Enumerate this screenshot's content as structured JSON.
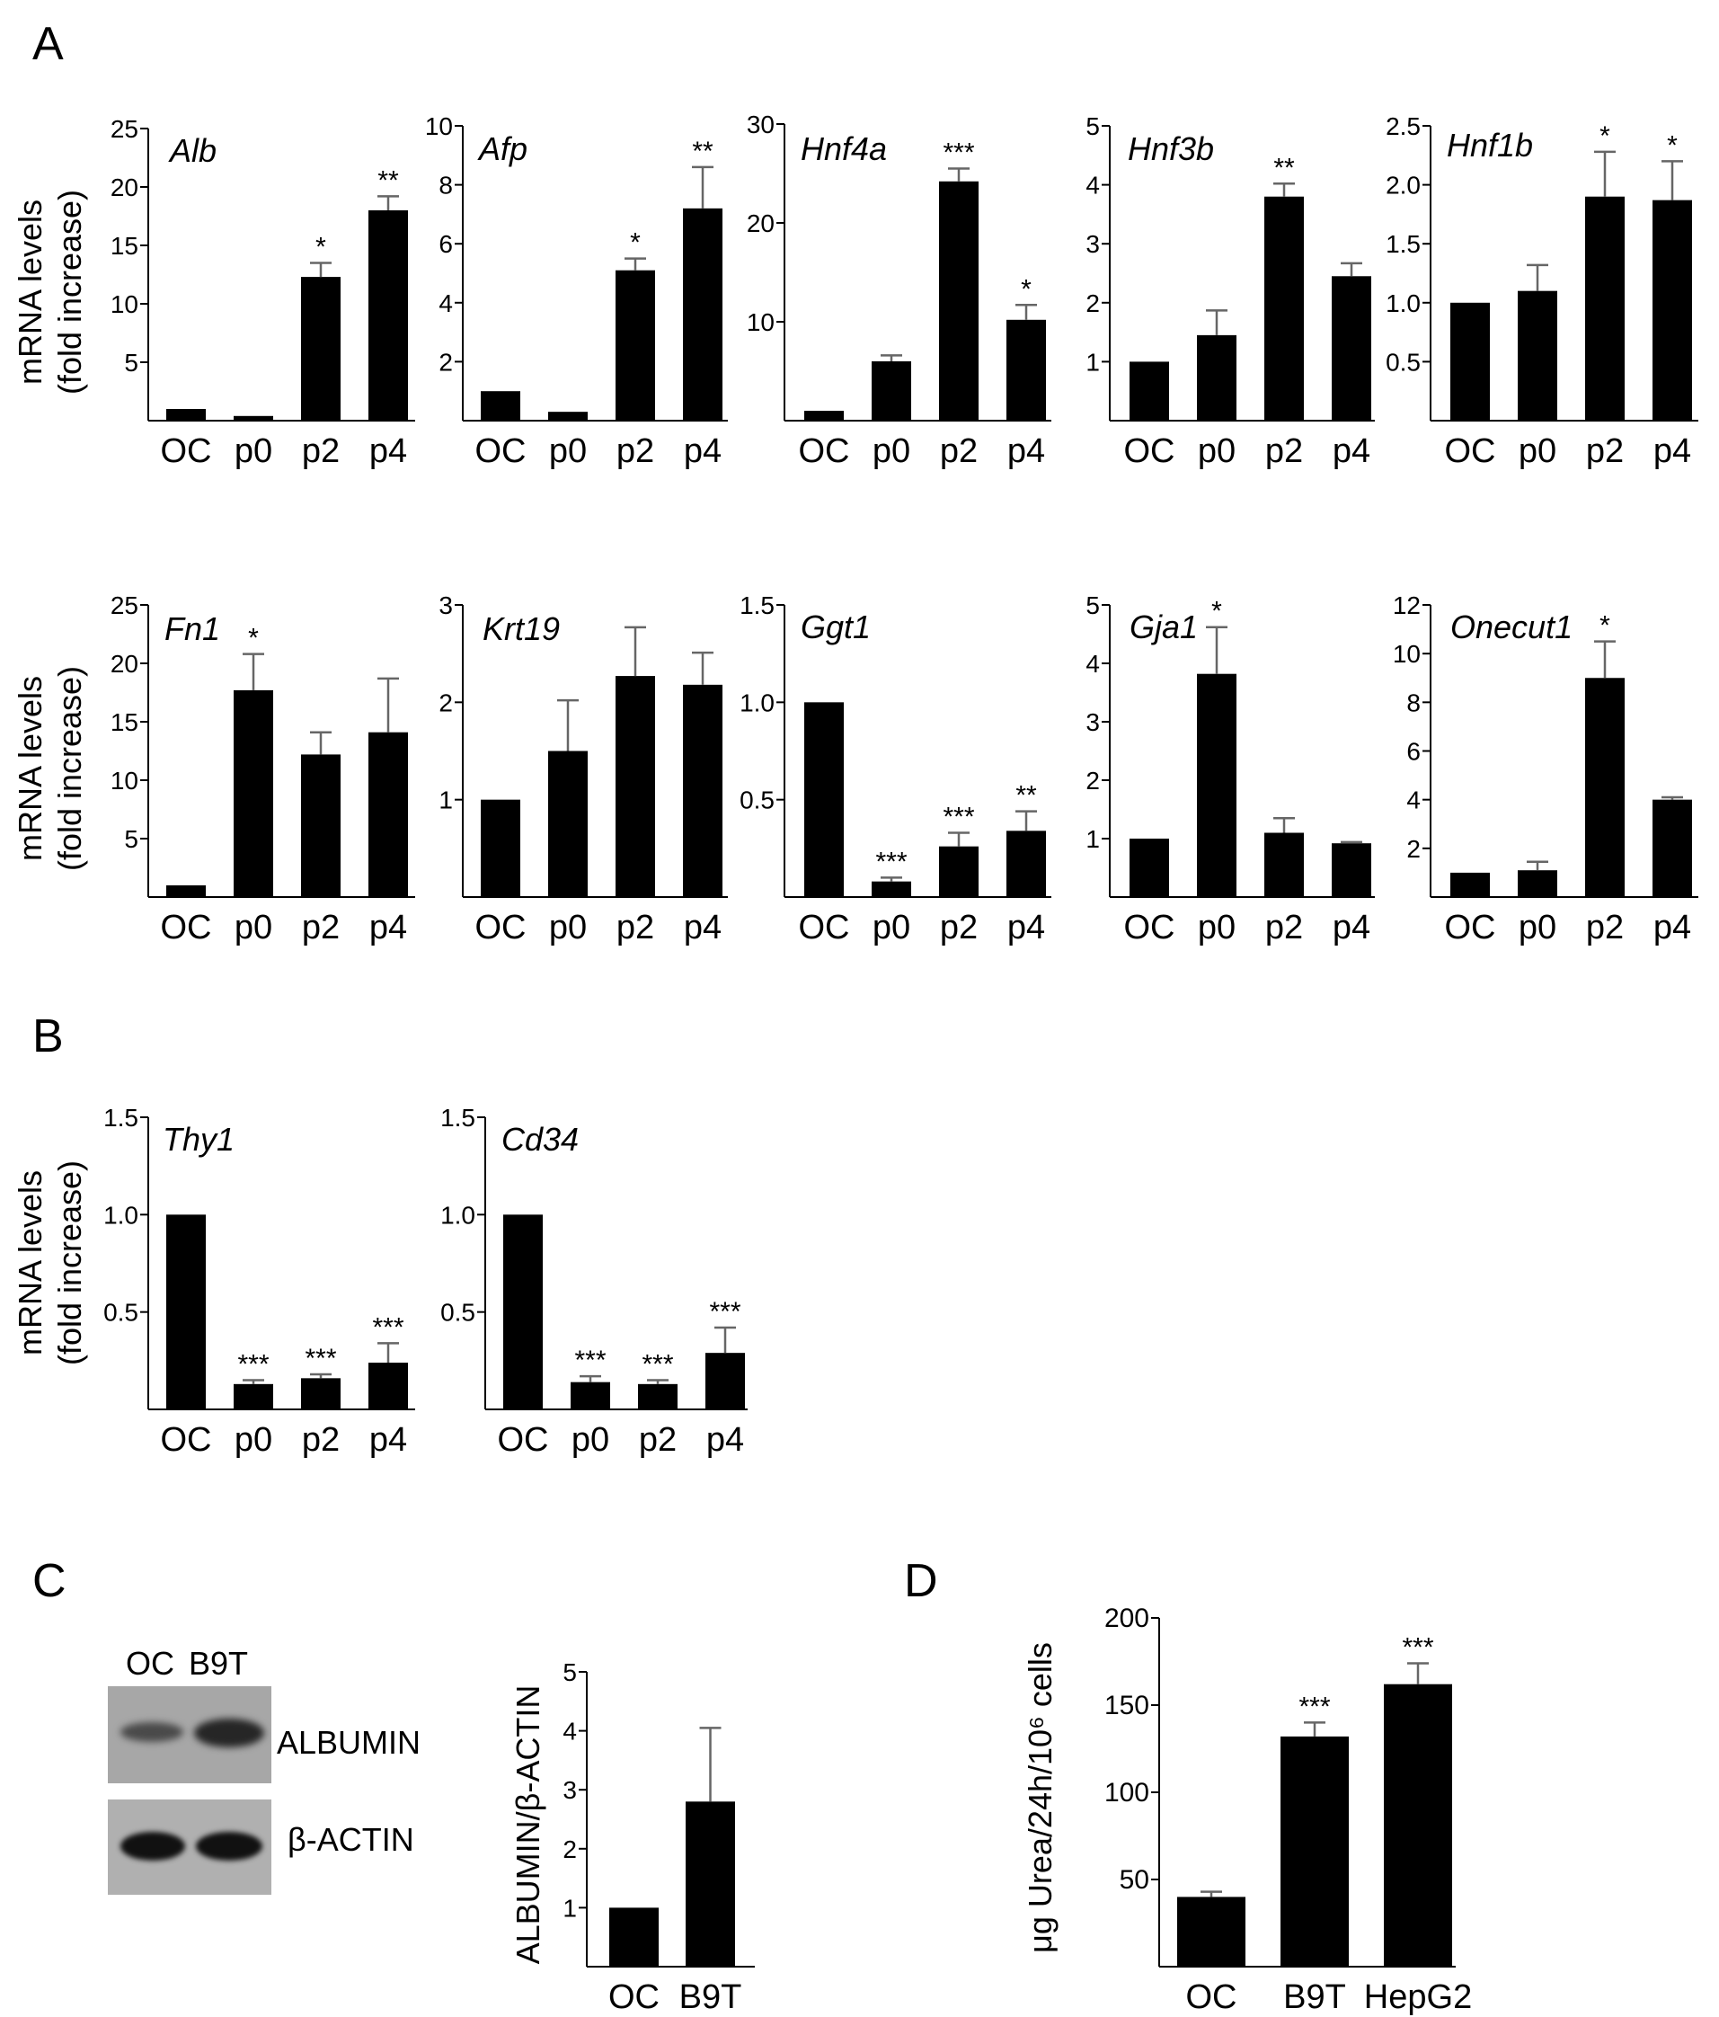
{
  "panels": {
    "A": "A",
    "B": "B",
    "C": "C",
    "D": "D"
  },
  "y_title": {
    "line1": "mRNA levels",
    "line2": "(fold increase)"
  },
  "chart_data": [
    {
      "type": "bar",
      "title": "Alb",
      "categories": [
        "OC",
        "p0",
        "p2",
        "p4"
      ],
      "values": [
        1,
        0.4,
        12.3,
        18
      ],
      "errors": [
        0,
        0,
        1.2,
        1.2
      ],
      "significance": [
        "",
        "",
        "*",
        "**"
      ],
      "ylim": [
        0,
        25
      ],
      "yticks": [
        5,
        10,
        15,
        20,
        25
      ]
    },
    {
      "type": "bar",
      "title": "Afp",
      "categories": [
        "OC",
        "p0",
        "p2",
        "p4"
      ],
      "values": [
        1,
        0.3,
        5.1,
        7.2
      ],
      "errors": [
        0,
        0,
        0.4,
        1.4
      ],
      "significance": [
        "",
        "",
        "*",
        "**"
      ],
      "ylim": [
        0,
        10
      ],
      "yticks": [
        2,
        4,
        6,
        8,
        10
      ]
    },
    {
      "type": "bar",
      "title": "Hnf4a",
      "categories": [
        "OC",
        "p0",
        "p2",
        "p4"
      ],
      "values": [
        1,
        6,
        24.2,
        10.2
      ],
      "errors": [
        0,
        0.6,
        1.3,
        1.5
      ],
      "significance": [
        "",
        "",
        "***",
        "*"
      ],
      "ylim": [
        0,
        30
      ],
      "yticks": [
        10,
        20,
        30
      ]
    },
    {
      "type": "bar",
      "title": "Hnf3b",
      "categories": [
        "OC",
        "p0",
        "p2",
        "p4"
      ],
      "values": [
        1,
        1.45,
        3.8,
        2.45
      ],
      "errors": [
        0,
        0.42,
        0.22,
        0.22
      ],
      "significance": [
        "",
        "",
        "**",
        ""
      ],
      "ylim": [
        0,
        5
      ],
      "yticks": [
        1,
        2,
        3,
        4,
        5
      ]
    },
    {
      "type": "bar",
      "title": "Hnf1b",
      "categories": [
        "OC",
        "p0",
        "p2",
        "p4"
      ],
      "values": [
        1,
        1.1,
        1.9,
        1.87
      ],
      "errors": [
        0,
        0.22,
        0.38,
        0.33
      ],
      "significance": [
        "",
        "",
        "*",
        "*"
      ],
      "ylim": [
        0,
        2.5
      ],
      "yticks": [
        "0.5",
        "1.0",
        "1.5",
        "2.0",
        "2.5"
      ]
    },
    {
      "type": "bar",
      "title": "Fn1",
      "categories": [
        "OC",
        "p0",
        "p2",
        "p4"
      ],
      "values": [
        1,
        17.7,
        12.2,
        14.1
      ],
      "errors": [
        0,
        3.1,
        1.9,
        4.6
      ],
      "significance": [
        "",
        "*",
        "",
        ""
      ],
      "ylim": [
        0,
        25
      ],
      "yticks": [
        5,
        10,
        15,
        20,
        25
      ]
    },
    {
      "type": "bar",
      "title": "Krt19",
      "categories": [
        "OC",
        "p0",
        "p2",
        "p4"
      ],
      "values": [
        1,
        1.5,
        2.27,
        2.18
      ],
      "errors": [
        0,
        0.52,
        0.5,
        0.33
      ],
      "significance": [
        "",
        "",
        "",
        ""
      ],
      "ylim": [
        0,
        3
      ],
      "yticks": [
        1,
        2,
        3
      ]
    },
    {
      "type": "bar",
      "title": "Ggt1",
      "categories": [
        "OC",
        "p0",
        "p2",
        "p4"
      ],
      "values": [
        1,
        0.08,
        0.26,
        0.34
      ],
      "errors": [
        0,
        0.02,
        0.07,
        0.1
      ],
      "significance": [
        "",
        "***",
        "***",
        "**"
      ],
      "ylim": [
        0,
        1.5
      ],
      "yticks": [
        "0.5",
        "1.0",
        "1.5"
      ]
    },
    {
      "type": "bar",
      "title": "Gja1",
      "categories": [
        "OC",
        "p0",
        "p2",
        "p4"
      ],
      "values": [
        1,
        3.82,
        1.1,
        0.92
      ],
      "errors": [
        0,
        0.8,
        0.25,
        0.02
      ],
      "significance": [
        "",
        "*",
        "",
        ""
      ],
      "ylim": [
        0,
        5
      ],
      "yticks": [
        1,
        2,
        3,
        4,
        5
      ]
    },
    {
      "type": "bar",
      "title": "Onecut1",
      "categories": [
        "OC",
        "p0",
        "p2",
        "p4"
      ],
      "values": [
        1,
        1.1,
        9,
        4
      ],
      "errors": [
        0,
        0.35,
        1.5,
        0.1
      ],
      "significance": [
        "",
        "",
        "*",
        ""
      ],
      "ylim": [
        0,
        12
      ],
      "yticks": [
        2,
        4,
        6,
        8,
        10,
        12
      ]
    },
    {
      "type": "bar",
      "title": "Thy1",
      "categories": [
        "OC",
        "p0",
        "p2",
        "p4"
      ],
      "values": [
        1,
        0.13,
        0.16,
        0.24
      ],
      "errors": [
        0,
        0.02,
        0.02,
        0.1
      ],
      "significance": [
        "",
        "***",
        "***",
        "***"
      ],
      "ylim": [
        0,
        1.5
      ],
      "yticks": [
        "0.5",
        "1.0",
        "1.5"
      ]
    },
    {
      "type": "bar",
      "title": "Cd34",
      "categories": [
        "OC",
        "p0",
        "p2",
        "p4"
      ],
      "values": [
        1,
        0.14,
        0.13,
        0.29
      ],
      "errors": [
        0,
        0.03,
        0.02,
        0.13
      ],
      "significance": [
        "",
        "***",
        "***",
        "***"
      ],
      "ylim": [
        0,
        1.5
      ],
      "yticks": [
        "0.5",
        "1.0",
        "1.5"
      ]
    },
    {
      "type": "bar",
      "title": "",
      "categories": [
        "OC",
        "B9T"
      ],
      "values": [
        1,
        2.8
      ],
      "errors": [
        0,
        1.25
      ],
      "significance": [
        "",
        ""
      ],
      "ylabel": "ALBUMIN/β-ACTIN",
      "ylim": [
        0,
        5
      ],
      "yticks": [
        1,
        2,
        3,
        4,
        5
      ]
    },
    {
      "type": "bar",
      "title": "",
      "categories": [
        "OC",
        "B9T",
        "HepG2"
      ],
      "values": [
        40,
        132,
        162
      ],
      "errors": [
        0,
        0,
        0
      ],
      "errors_up": [
        3,
        8,
        12
      ],
      "significance": [
        "",
        "***",
        "***"
      ],
      "ylabel": "μg Urea/24h/10⁶ cells",
      "ylim": [
        0,
        200
      ],
      "yticks": [
        50,
        100,
        150,
        200
      ]
    }
  ],
  "blot": {
    "lanes": [
      "OC",
      "B9T"
    ],
    "labels": [
      "ALBUMIN",
      "β-ACTIN"
    ]
  }
}
